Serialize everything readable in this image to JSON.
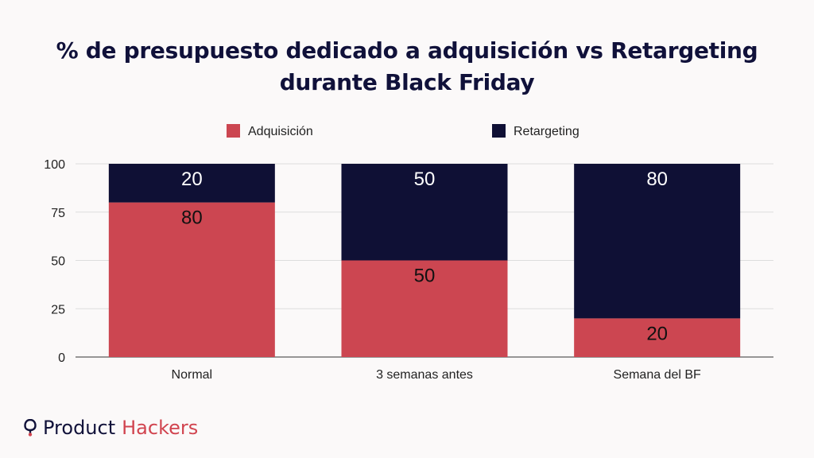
{
  "title_lines": [
    "% de presupuesto dedicado a adquisición vs Retargeting",
    "durante Black Friday"
  ],
  "chart_data": {
    "type": "bar",
    "stacked": true,
    "categories": [
      "Normal",
      "3 semanas antes",
      "Semana del BF"
    ],
    "series": [
      {
        "name": "Adquisición",
        "values": [
          80,
          50,
          20
        ],
        "color": "#cc4651"
      },
      {
        "name": "Retargeting",
        "values": [
          20,
          50,
          80
        ],
        "color": "#0f1035"
      }
    ],
    "ylim": [
      0,
      100
    ],
    "yticks": [
      0,
      25,
      50,
      75,
      100
    ],
    "grid": true,
    "legend_position": "top-center"
  },
  "logo": {
    "word1": "Product",
    "word2": "Hackers",
    "icon": "pin-icon"
  }
}
